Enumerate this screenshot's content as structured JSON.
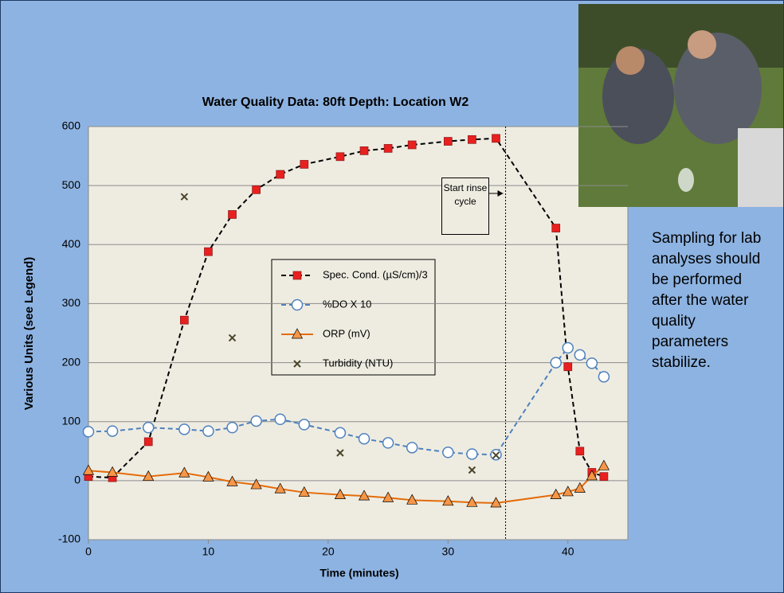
{
  "chart_data": {
    "type": "line",
    "title": "Water Quality Data:  80ft Depth: Location W2",
    "x_label": "Time (minutes)",
    "y_label": "Various Units (see Legend)",
    "xlim": [
      0,
      45
    ],
    "xticks": [
      0,
      10,
      20,
      30,
      40
    ],
    "ylim": [
      -100,
      600
    ],
    "yticks": [
      -100,
      0,
      100,
      200,
      300,
      400,
      500,
      600
    ],
    "grid": true,
    "vline_x": 34.8,
    "annotation": "Start rinse cycle",
    "series": [
      {
        "name": "Spec. Cond. (µS/cm)/3",
        "color": "#000000",
        "marker": "square",
        "marker_color": "#e8201f",
        "line": "dashed",
        "x": [
          0,
          2,
          5,
          8,
          10,
          12,
          14,
          16,
          18,
          21,
          23,
          25,
          27,
          30,
          32,
          34,
          39,
          40,
          41,
          42,
          43
        ],
        "values": [
          7,
          5,
          66,
          272,
          388,
          451,
          493,
          519,
          536,
          549,
          559,
          563,
          569,
          575,
          578,
          580,
          428,
          193,
          50,
          14,
          7
        ]
      },
      {
        "name": "%DO X 10",
        "color": "#4f81bd",
        "marker": "circle",
        "marker_color": "#ffffff",
        "line": "dashed",
        "x": [
          0,
          2,
          5,
          8,
          10,
          12,
          14,
          16,
          18,
          21,
          23,
          25,
          27,
          30,
          32,
          34,
          39,
          40,
          41,
          42,
          43
        ],
        "values": [
          83,
          84,
          90,
          87,
          84,
          90,
          101,
          104,
          95,
          81,
          71,
          64,
          56,
          48,
          45,
          44,
          200,
          225,
          213,
          199,
          176
        ]
      },
      {
        "name": "ORP (mV)",
        "color": "#e46c0a",
        "marker": "triangle",
        "marker_color": "#f79646",
        "line": "solid",
        "x": [
          0,
          2,
          5,
          8,
          10,
          12,
          14,
          16,
          18,
          21,
          23,
          25,
          27,
          30,
          32,
          34,
          39,
          40,
          41,
          42,
          43
        ],
        "values": [
          17,
          14,
          7,
          13,
          6,
          -2,
          -7,
          -14,
          -20,
          -24,
          -26,
          -29,
          -33,
          -35,
          -37,
          -38,
          -24,
          -19,
          -13,
          8,
          25
        ]
      },
      {
        "name": "Turbidity (NTU)",
        "color": "#4a452a",
        "marker": "x",
        "marker_color": "#4a452a",
        "line": "none",
        "x": [
          8,
          12,
          21,
          32,
          34
        ],
        "values": [
          481,
          242,
          47,
          18,
          43
        ]
      }
    ]
  },
  "side_note": "Sampling for lab analyses should be performed after the water quality parameters stabilize."
}
